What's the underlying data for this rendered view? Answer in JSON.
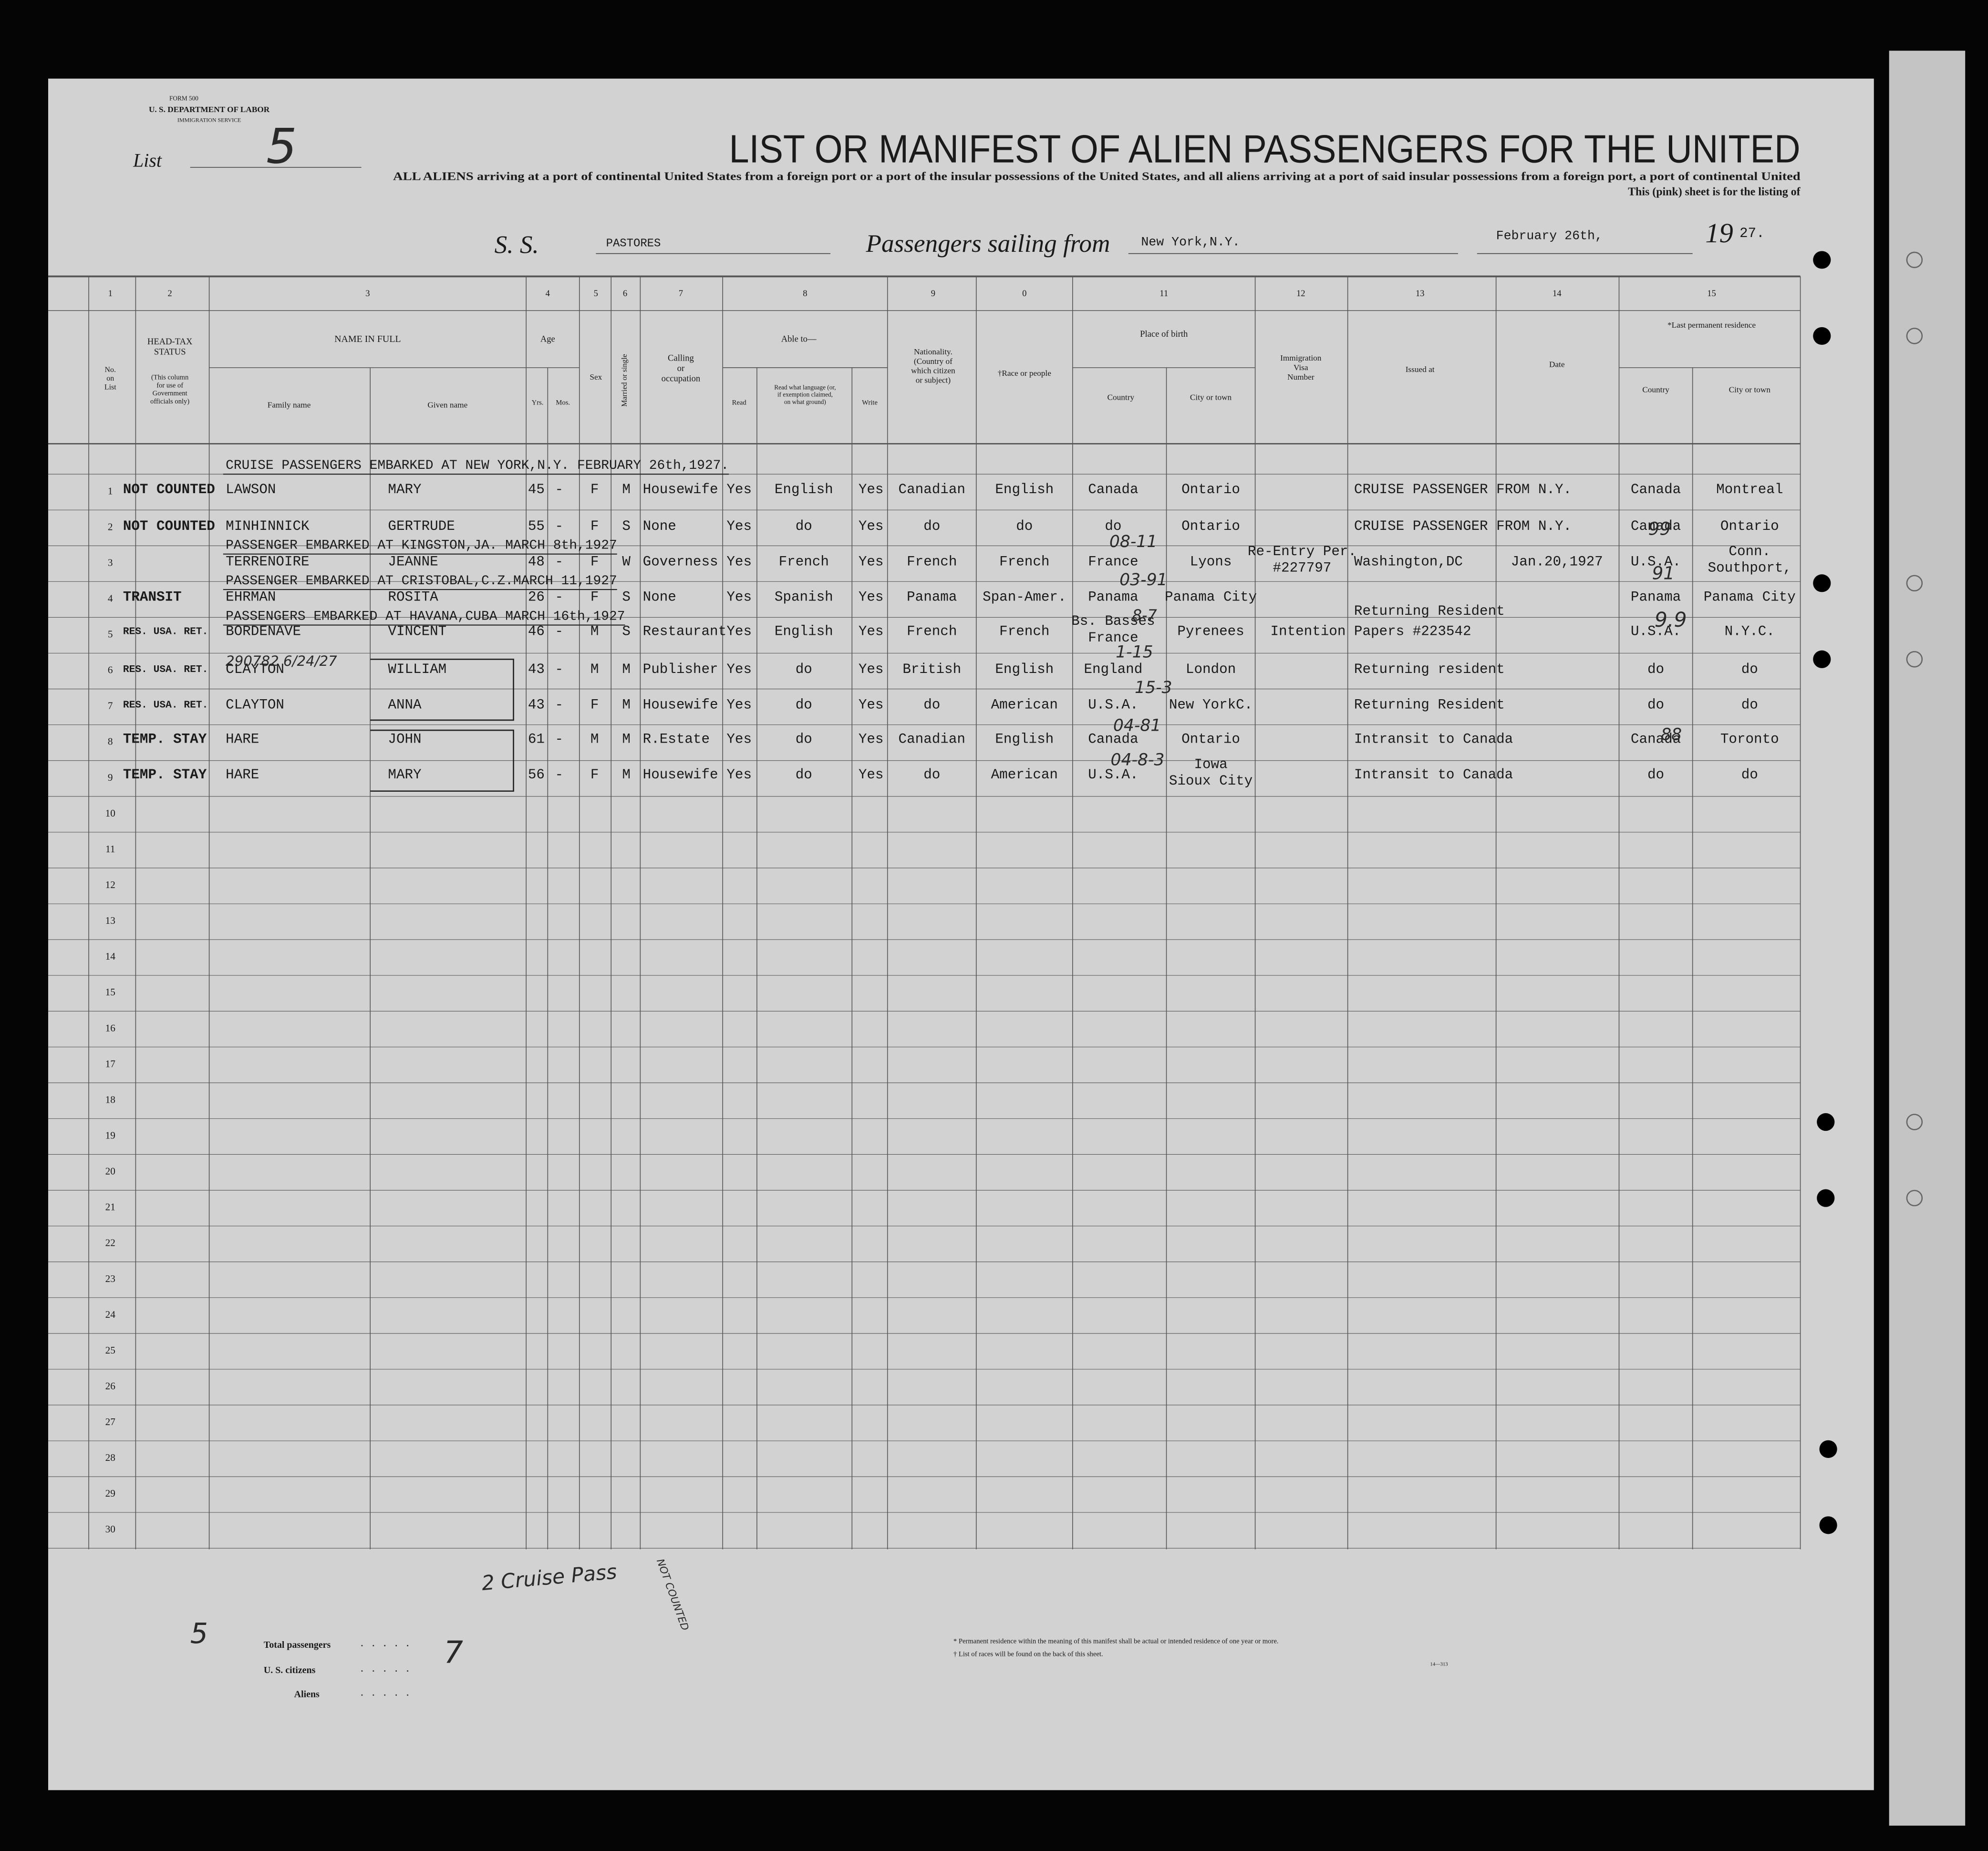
{
  "header": {
    "form": "FORM 500",
    "department": "U. S. DEPARTMENT OF LABOR",
    "service": "IMMIGRATION SERVICE",
    "list_label": "List",
    "list_number": "5",
    "title": "LIST OR MANIFEST OF ALIEN PASSENGERS FOR THE UNITED",
    "subtitle_1": "ALL ALIENS arriving at a port of continental United States from a foreign port or a port of the insular possessions of the United States, and all aliens arriving at a port of said insular possessions from a foreign port, a port of continental United",
    "subtitle_2": "This (pink) sheet is for the listing of",
    "ss_label": "S. S.",
    "ship": "PASTORES",
    "sailing_label": "Passengers sailing from",
    "port": "New York,N.Y.",
    "date": "February 26th,",
    "year_prefix": "19",
    "year_suffix": "27."
  },
  "column_numbers": [
    "1",
    "2",
    "3",
    "4",
    "5",
    "6",
    "7",
    "8",
    "9",
    "0",
    "11",
    "12",
    "13",
    "14",
    "15"
  ],
  "column_headers": [
    [
      "No.",
      "on",
      "List"
    ],
    [
      "HEAD-TAX",
      "STATUS"
    ],
    [
      "(This column",
      "for use of",
      "Government",
      "officials only)"
    ],
    [
      "NAME IN FULL"
    ],
    [
      "Family name"
    ],
    [
      "Given name"
    ],
    [
      "Age"
    ],
    [
      "Yrs."
    ],
    [
      "Mos."
    ],
    [
      "Sex"
    ],
    [
      "Married or single"
    ],
    [
      "Calling",
      "or",
      "occupation"
    ],
    [
      "Able to—"
    ],
    [
      "Read"
    ],
    [
      "Read what language (or,",
      "if exemption claimed,",
      "on what ground)"
    ],
    [
      "Write"
    ],
    [
      "Nationality.",
      "(Country of",
      "which citizen",
      "or subject)"
    ],
    [
      "†Race or people"
    ],
    [
      "Place of birth"
    ],
    [
      "Country"
    ],
    [
      "City or town"
    ],
    [
      "Immigration",
      "Visa",
      "Number"
    ],
    [
      "Issued at"
    ],
    [
      "Date"
    ],
    [
      "*Last permanent residence"
    ],
    [
      "Country"
    ],
    [
      "City or town"
    ]
  ],
  "line_numbers": [
    "1",
    "2",
    "3",
    "4",
    "5",
    "6",
    "7",
    "8",
    "9",
    "10",
    "11",
    "12",
    "13",
    "14",
    "15",
    "16",
    "17",
    "18",
    "19",
    "20",
    "21",
    "22",
    "23",
    "24",
    "25",
    "26",
    "27",
    "28",
    "29",
    "30"
  ],
  "sections": [
    "CRUISE PASSENGERS EMBARKED AT NEW YORK,N.Y. FEBRUARY 26th,1927.",
    "PASSENGER EMBARKED AT KINGSTON,JA. MARCH 8th,1927",
    "PASSENGER EMBARKED AT CRISTOBAL,C.Z.MARCH 11,1927",
    "PASSENGERS EMBARKED AT HAVANA,CUBA MARCH 16th,1927"
  ],
  "rows": [
    {
      "status": "NOT COUNTED",
      "family": "LAWSON",
      "given": "MARY",
      "age": "45",
      "months": "-",
      "sex": "F",
      "married": "M",
      "occupation": "Housewife",
      "read": "Yes",
      "language": "English",
      "write": "Yes",
      "nationality": "Canadian",
      "race": "English",
      "birth_country": "Canada",
      "birth_city": "Ontario",
      "issued_at": "CRUISE PASSENGER FROM N.Y.",
      "res_country": "Canada",
      "res_city": "Montreal"
    },
    {
      "status": "NOT COUNTED",
      "family": "MINHINNICK",
      "given": "GERTRUDE",
      "age": "55",
      "months": "-",
      "sex": "F",
      "married": "S",
      "occupation": "None",
      "read": "Yes",
      "language": "do",
      "write": "Yes",
      "nationality": "do",
      "race": "do",
      "birth_country": "do",
      "birth_city": "Ontario",
      "issued_at": "CRUISE PASSENGER FROM N.Y.",
      "res_country": "Canada",
      "res_city": "Ontario"
    },
    {
      "family": "TERRENOIRE",
      "given": "JEANNE",
      "age": "48",
      "months": "-",
      "sex": "F",
      "married": "W",
      "occupation": "Governess",
      "read": "Yes",
      "language": "French",
      "write": "Yes",
      "nationality": "French",
      "race": "French",
      "birth_country": "France",
      "birth_city": "Lyons",
      "visa": [
        "Re-Entry Per.",
        "#227797"
      ],
      "issued_at": "Washington,DC",
      "issued_date": "Jan.20,1927",
      "res_country": "U.S.A.",
      "res_city": [
        "Conn.",
        "Southport,"
      ]
    },
    {
      "status": "TRANSIT",
      "family": "EHRMAN",
      "given": "ROSITA",
      "age": "26",
      "months": "-",
      "sex": "F",
      "married": "S",
      "occupation": "None",
      "read": "Yes",
      "language": "Spanish",
      "write": "Yes",
      "nationality": "Panama",
      "race": "Span-Amer.",
      "birth_country": "Panama",
      "birth_city": "Panama City",
      "res_country": "Panama",
      "res_city": "Panama City"
    },
    {
      "status": "RES. USA. RET.",
      "family": "BORDENAVE",
      "given": "VINCENT",
      "age": "46",
      "months": "-",
      "sex": "M",
      "married": "S",
      "occupation": "Restaurant",
      "read": "Yes",
      "language": "English",
      "write": "Yes",
      "nationality": "French",
      "race": "French",
      "birth_country": [
        "Bs. Basses",
        "France"
      ],
      "birth_city": "Pyrenees",
      "visa": "Intention Papers #223542",
      "issued_at": "Returning Resident",
      "res_country": "U.S.A.",
      "res_city": "N.Y.C."
    },
    {
      "status": "RES. USA. RET.",
      "family": "CLAYTON",
      "given": "WILLIAM",
      "age": "43",
      "months": "-",
      "sex": "M",
      "married": "M",
      "occupation": "Publisher",
      "read": "Yes",
      "language": "do",
      "write": "Yes",
      "nationality": "British",
      "race": "English",
      "birth_country": "England",
      "birth_city": "London",
      "issued_at": "Returning resident",
      "res_country": "do",
      "res_city": "do"
    },
    {
      "status": "RES. USA. RET.",
      "family": "CLAYTON",
      "given": "ANNA",
      "age": "43",
      "months": "-",
      "sex": "F",
      "married": "M",
      "occupation": "Housewife",
      "read": "Yes",
      "language": "do",
      "write": "Yes",
      "nationality": "do",
      "race": "American",
      "birth_country": "U.S.A.",
      "birth_city": "New YorkC.",
      "issued_at": "Returning Resident",
      "res_country": "do",
      "res_city": "do"
    },
    {
      "status": "TEMP. STAY",
      "family": "HARE",
      "given": "JOHN",
      "age": "61",
      "months": "-",
      "sex": "M",
      "married": "M",
      "occupation": "R.Estate",
      "read": "Yes",
      "language": "do",
      "write": "Yes",
      "nationality": "Canadian",
      "race": "English",
      "birth_country": "Canada",
      "birth_city": "Ontario",
      "issued_at": "Intransit to Canada",
      "res_country": "Canada",
      "res_city": "Toronto"
    },
    {
      "status": "TEMP. STAY",
      "family": "HARE",
      "given": "MARY",
      "age": "56",
      "months": "-",
      "sex": "F",
      "married": "M",
      "occupation": "Housewife",
      "read": "Yes",
      "language": "do",
      "write": "Yes",
      "nationality": "do",
      "race": "American",
      "birth_country": "U.S.A.",
      "birth_city": [
        "Iowa",
        "Sioux City"
      ],
      "issued_at": "Intransit to Canada",
      "res_country": "do",
      "res_city": "do"
    }
  ],
  "annotations": [
    "08-11",
    "03-91",
    "8-7",
    "1-15",
    "15-3",
    "04-81",
    "04-8-3",
    "99",
    "91",
    "9.9",
    "88",
    "290782 6/24/27",
    "2 Cruise Pass",
    "NOT COUNTED",
    "5",
    "7"
  ],
  "footer": {
    "totals": [
      "Total passengers",
      "U. S. citizens",
      "Aliens"
    ],
    "footnotes": [
      "* Permanent residence within the meaning of this manifest shall be actual or intended residence of one year or more.",
      "† List of races will be found on the back of this sheet."
    ],
    "form_code": "14—313"
  }
}
